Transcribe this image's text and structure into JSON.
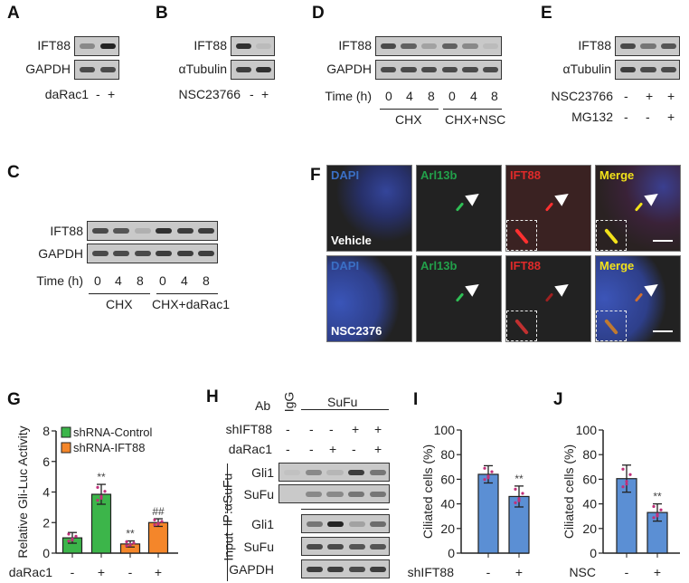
{
  "panels": {
    "A": {
      "letter": "A",
      "rows": [
        "IFT88",
        "GAPDH"
      ],
      "treat": "daRac1",
      "signs": [
        "-",
        "+"
      ]
    },
    "B": {
      "letter": "B",
      "rows": [
        "IFT88",
        "αTubulin"
      ],
      "treat": "NSC23766",
      "signs": [
        "-",
        "+"
      ]
    },
    "C": {
      "letter": "C",
      "rows": [
        "IFT88",
        "GAPDH"
      ],
      "time_label": "Time (h)",
      "times": [
        "0",
        "4",
        "8",
        "0",
        "4",
        "8"
      ],
      "groups": [
        "CHX",
        "CHX+daRac1"
      ]
    },
    "D": {
      "letter": "D",
      "rows": [
        "IFT88",
        "GAPDH"
      ],
      "time_label": "Time (h)",
      "times": [
        "0",
        "4",
        "8",
        "0",
        "4",
        "8"
      ],
      "groups": [
        "CHX",
        "CHX+NSC"
      ]
    },
    "E": {
      "letter": "E",
      "rows": [
        "IFT88",
        "αTubulin"
      ],
      "treat1": "NSC23766",
      "signs1": [
        "-",
        "+",
        "+"
      ],
      "treat2": "MG132",
      "signs2": [
        "-",
        "-",
        "+"
      ]
    },
    "F": {
      "letter": "F",
      "channels": [
        "DAPI",
        "Arl13b",
        "IFT88",
        "Merge"
      ],
      "channel_colors": [
        "#3a6fc4",
        "#22a04a",
        "#e02a2a",
        "#f2e21a"
      ],
      "conditions": [
        "Vehicle",
        "NSC2376"
      ]
    },
    "H": {
      "letter": "H",
      "ab_label": "Ab",
      "ab_igg": "IgG",
      "ab_sufu": "SuFu",
      "treat1": "shIFT88",
      "signs1": [
        "-",
        "-",
        "-",
        "+",
        "+"
      ],
      "treat2": "daRac1",
      "signs2": [
        "-",
        "-",
        "+",
        "-",
        "+"
      ],
      "ip_label": "IP:αSuFu",
      "input_label": "Input",
      "ip_rows": [
        "Gli1",
        "SuFu"
      ],
      "input_rows": [
        "Gli1",
        "SuFu",
        "GAPDH"
      ]
    }
  },
  "blot_intensity": {
    "A": [
      [
        0.5,
        0.95
      ],
      [
        0.8,
        0.8
      ]
    ],
    "B": [
      [
        0.9,
        0.15
      ],
      [
        0.85,
        0.9
      ]
    ],
    "C": [
      [
        0.8,
        0.75,
        0.25,
        0.9,
        0.85,
        0.85
      ],
      [
        0.8,
        0.8,
        0.8,
        0.85,
        0.85,
        0.85
      ]
    ],
    "D": [
      [
        0.8,
        0.7,
        0.35,
        0.7,
        0.5,
        0.15
      ],
      [
        0.8,
        0.8,
        0.8,
        0.8,
        0.8,
        0.8
      ]
    ],
    "E": [
      [
        0.8,
        0.6,
        0.75
      ],
      [
        0.85,
        0.8,
        0.8
      ]
    ],
    "H_ip": [
      [
        0.1,
        0.5,
        0.2,
        0.85,
        0.6
      ],
      [
        0.0,
        0.5,
        0.5,
        0.6,
        0.6
      ]
    ],
    "H_input": [
      [
        0.6,
        0.95,
        0.35,
        0.65
      ],
      [
        0.8,
        0.8,
        0.75,
        0.75
      ],
      [
        0.85,
        0.85,
        0.8,
        0.85
      ]
    ]
  },
  "chart_data": [
    {
      "panel": "G",
      "letter": "G",
      "type": "bar",
      "ylabel": "Relative Gli-Luc Activity",
      "ylim": [
        0,
        8
      ],
      "yticks": [
        0,
        2,
        4,
        6,
        8
      ],
      "xlabel": "daRac1",
      "categories": [
        "-",
        "+",
        "-",
        "+"
      ],
      "series": [
        {
          "name": "shRNA-Control",
          "color": "#3cb54a"
        },
        {
          "name": "shRNA-IFT88",
          "color": "#f4862a"
        }
      ],
      "bar_series": [
        0,
        0,
        1,
        1
      ],
      "values": [
        1.0,
        3.85,
        0.6,
        2.0
      ],
      "errors": [
        0.35,
        0.65,
        0.2,
        0.25
      ],
      "annotations": [
        "",
        "**",
        "**",
        "##"
      ],
      "legend": "top-left"
    },
    {
      "panel": "I",
      "letter": "I",
      "type": "bar",
      "ylabel": "Ciliated cells (%)",
      "ylim": [
        0,
        100
      ],
      "yticks": [
        0,
        20,
        40,
        60,
        80,
        100
      ],
      "xlabel": "shIFT88",
      "categories": [
        "-",
        "+"
      ],
      "color": "#5b8fd4",
      "values": [
        64,
        46
      ],
      "errors": [
        7,
        8.5
      ],
      "annotations": [
        "",
        "**"
      ]
    },
    {
      "panel": "J",
      "letter": "J",
      "type": "bar",
      "ylabel": "Ciliated cells (%)",
      "ylim": [
        0,
        100
      ],
      "yticks": [
        0,
        20,
        40,
        60,
        80,
        100
      ],
      "xlabel": "NSC",
      "categories": [
        "-",
        "+"
      ],
      "color": "#5b8fd4",
      "values": [
        60.5,
        33
      ],
      "errors": [
        11,
        7
      ],
      "annotations": [
        "",
        "**"
      ]
    }
  ]
}
